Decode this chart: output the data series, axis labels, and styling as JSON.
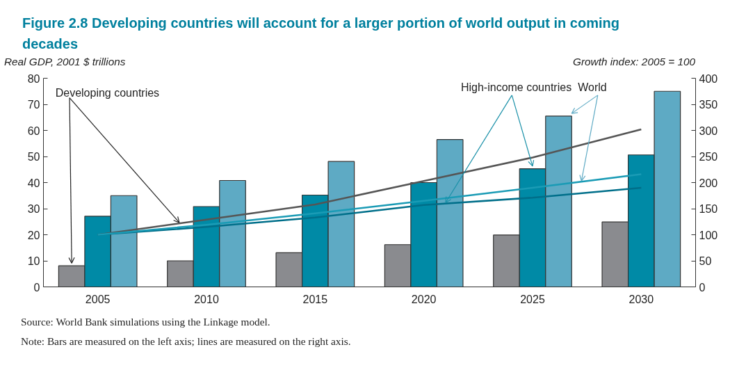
{
  "chart_data": {
    "type": "bar",
    "title": "Figure 2.8  Developing countries will account for a larger portion of world output in coming decades",
    "ylabel": "Real GDP, 2001 $ trillions",
    "y2label": "Growth index: 2005 = 100",
    "categories": [
      "2005",
      "2010",
      "2015",
      "2020",
      "2025",
      "2030"
    ],
    "series": [
      {
        "name": "Developing countries",
        "axis": "y",
        "color": "#8a8b8f",
        "values": [
          8.1,
          10,
          13.1,
          16.2,
          19.9,
          24.9
        ]
      },
      {
        "name": "High-income countries",
        "axis": "y",
        "color": "#008aa6",
        "values": [
          27.1,
          30.8,
          35.2,
          40,
          45.3,
          50.6
        ]
      },
      {
        "name": "World",
        "axis": "y",
        "color": "#5eaac4",
        "values": [
          35,
          40.8,
          48.1,
          56.5,
          65.5,
          75
        ]
      },
      {
        "type": "line",
        "axis": "y2",
        "color": "#555555",
        "values": [
          100,
          129,
          158,
          203,
          248,
          302
        ]
      },
      {
        "type": "line",
        "axis": "y2",
        "color": "#006f8a",
        "values": [
          100,
          115,
          133,
          157,
          171,
          190
        ]
      },
      {
        "type": "line",
        "axis": "y2",
        "color": "#1a9bb5",
        "values": [
          100,
          119,
          141,
          165,
          190,
          216
        ]
      }
    ],
    "ylim": [
      0,
      80
    ],
    "yticks": [
      0,
      10,
      20,
      30,
      40,
      50,
      60,
      70,
      80
    ],
    "y2lim": [
      0,
      400
    ],
    "y2ticks": [
      0,
      50,
      100,
      150,
      200,
      250,
      300,
      350,
      400
    ],
    "grid": false,
    "legend": false,
    "annotations": [
      "Source: World Bank simulations using the Linkage model.",
      "Note: Bars are measured on the left axis; lines are measured on the right axis."
    ]
  }
}
